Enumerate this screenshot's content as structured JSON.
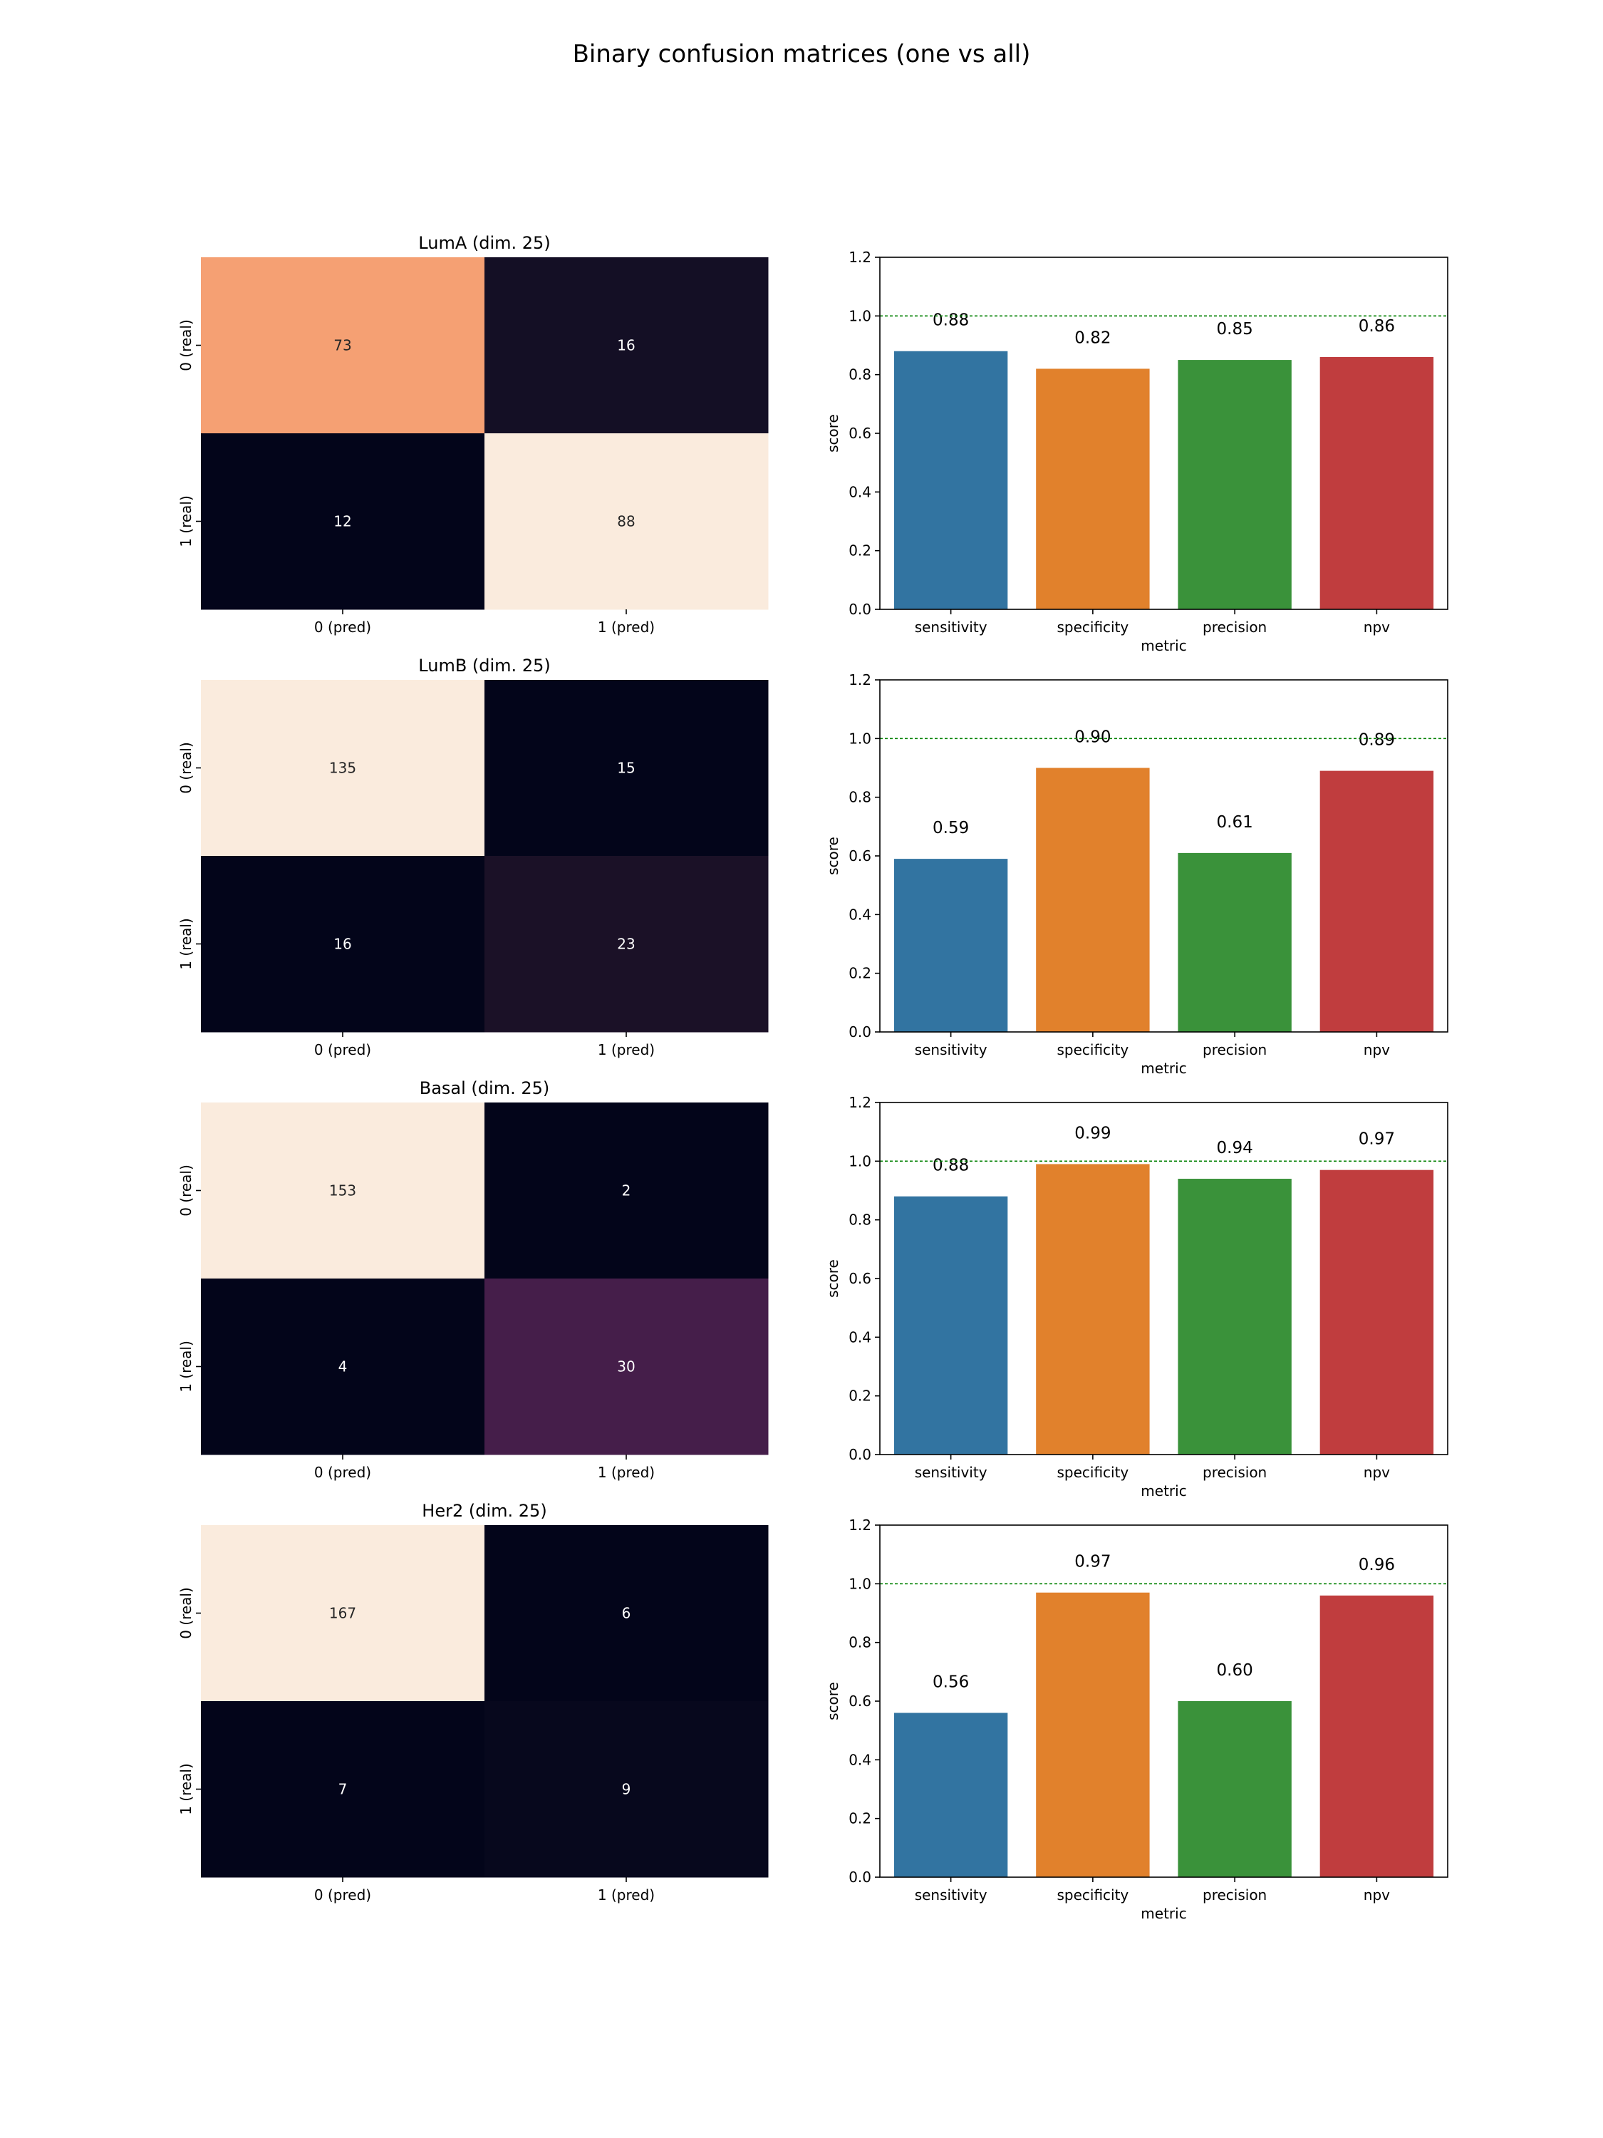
{
  "figure": {
    "suptitle": "Binary confusion matrices (one vs all)"
  },
  "chart_data": [
    {
      "type": "heatmap",
      "title": "LumA (dim. 25)",
      "xticklabels": [
        "0 (pred)",
        "1 (pred)"
      ],
      "yticklabels": [
        "0 (real)",
        "1 (real)"
      ],
      "values": [
        [
          73,
          16
        ],
        [
          12,
          88
        ]
      ],
      "colors": [
        [
          "#f5a073",
          "#140f25"
        ],
        [
          "#03051a",
          "#faebdd"
        ]
      ],
      "annotation_colors": [
        [
          "#262626",
          "#ffffff"
        ],
        [
          "#ffffff",
          "#262626"
        ]
      ]
    },
    {
      "type": "bar",
      "categories": [
        "sensitivity",
        "specificity",
        "precision",
        "npv"
      ],
      "values": [
        0.88,
        0.82,
        0.85,
        0.86
      ],
      "labels": [
        "0.88",
        "0.82",
        "0.85",
        "0.86"
      ],
      "xlabel": "metric",
      "ylabel": "score",
      "ylim": [
        0,
        1.2
      ],
      "yticks": [
        "0.0",
        "0.2",
        "0.4",
        "0.6",
        "0.8",
        "1.0",
        "1.2"
      ],
      "reference_line": 1.0,
      "reference_color": "#008000",
      "bar_colors": [
        "#3274a1",
        "#e1812c",
        "#3a923a",
        "#c03d3e"
      ]
    },
    {
      "type": "heatmap",
      "title": "LumB (dim. 25)",
      "xticklabels": [
        "0 (pred)",
        "1 (pred)"
      ],
      "yticklabels": [
        "0 (real)",
        "1 (real)"
      ],
      "values": [
        [
          135,
          15
        ],
        [
          16,
          23
        ]
      ],
      "colors": [
        [
          "#faebdd",
          "#03051a"
        ],
        [
          "#03051a",
          "#1b1127"
        ]
      ],
      "annotation_colors": [
        [
          "#262626",
          "#ffffff"
        ],
        [
          "#ffffff",
          "#ffffff"
        ]
      ]
    },
    {
      "type": "bar",
      "categories": [
        "sensitivity",
        "specificity",
        "precision",
        "npv"
      ],
      "values": [
        0.59,
        0.9,
        0.61,
        0.89
      ],
      "labels": [
        "0.59",
        "0.90",
        "0.61",
        "0.89"
      ],
      "xlabel": "metric",
      "ylabel": "score",
      "ylim": [
        0,
        1.2
      ],
      "yticks": [
        "0.0",
        "0.2",
        "0.4",
        "0.6",
        "0.8",
        "1.0",
        "1.2"
      ],
      "reference_line": 1.0,
      "reference_color": "#008000",
      "bar_colors": [
        "#3274a1",
        "#e1812c",
        "#3a923a",
        "#c03d3e"
      ]
    },
    {
      "type": "heatmap",
      "title": "Basal (dim. 25)",
      "xticklabels": [
        "0 (pred)",
        "1 (pred)"
      ],
      "yticklabels": [
        "0 (real)",
        "1 (real)"
      ],
      "values": [
        [
          153,
          2
        ],
        [
          4,
          30
        ]
      ],
      "colors": [
        [
          "#faebdd",
          "#03051a"
        ],
        [
          "#03051a",
          "#451e4a"
        ]
      ],
      "annotation_colors": [
        [
          "#262626",
          "#ffffff"
        ],
        [
          "#ffffff",
          "#ffffff"
        ]
      ]
    },
    {
      "type": "bar",
      "categories": [
        "sensitivity",
        "specificity",
        "precision",
        "npv"
      ],
      "values": [
        0.88,
        0.99,
        0.94,
        0.97
      ],
      "labels": [
        "0.88",
        "0.99",
        "0.94",
        "0.97"
      ],
      "xlabel": "metric",
      "ylabel": "score",
      "ylim": [
        0,
        1.2
      ],
      "yticks": [
        "0.0",
        "0.2",
        "0.4",
        "0.6",
        "0.8",
        "1.0",
        "1.2"
      ],
      "reference_line": 1.0,
      "reference_color": "#008000",
      "bar_colors": [
        "#3274a1",
        "#e1812c",
        "#3a923a",
        "#c03d3e"
      ]
    },
    {
      "type": "heatmap",
      "title": "Her2 (dim. 25)",
      "xticklabels": [
        "0 (pred)",
        "1 (pred)"
      ],
      "yticklabels": [
        "0 (real)",
        "1 (real)"
      ],
      "values": [
        [
          167,
          6
        ],
        [
          7,
          9
        ]
      ],
      "colors": [
        [
          "#faebdd",
          "#03051a"
        ],
        [
          "#03051a",
          "#07081d"
        ]
      ],
      "annotation_colors": [
        [
          "#262626",
          "#ffffff"
        ],
        [
          "#ffffff",
          "#ffffff"
        ]
      ]
    },
    {
      "type": "bar",
      "categories": [
        "sensitivity",
        "specificity",
        "precision",
        "npv"
      ],
      "values": [
        0.56,
        0.97,
        0.6,
        0.96
      ],
      "labels": [
        "0.56",
        "0.97",
        "0.60",
        "0.96"
      ],
      "xlabel": "metric",
      "ylabel": "score",
      "ylim": [
        0,
        1.2
      ],
      "yticks": [
        "0.0",
        "0.2",
        "0.4",
        "0.6",
        "0.8",
        "1.0",
        "1.2"
      ],
      "reference_line": 1.0,
      "reference_color": "#008000",
      "bar_colors": [
        "#3274a1",
        "#e1812c",
        "#3a923a",
        "#c03d3e"
      ]
    }
  ]
}
